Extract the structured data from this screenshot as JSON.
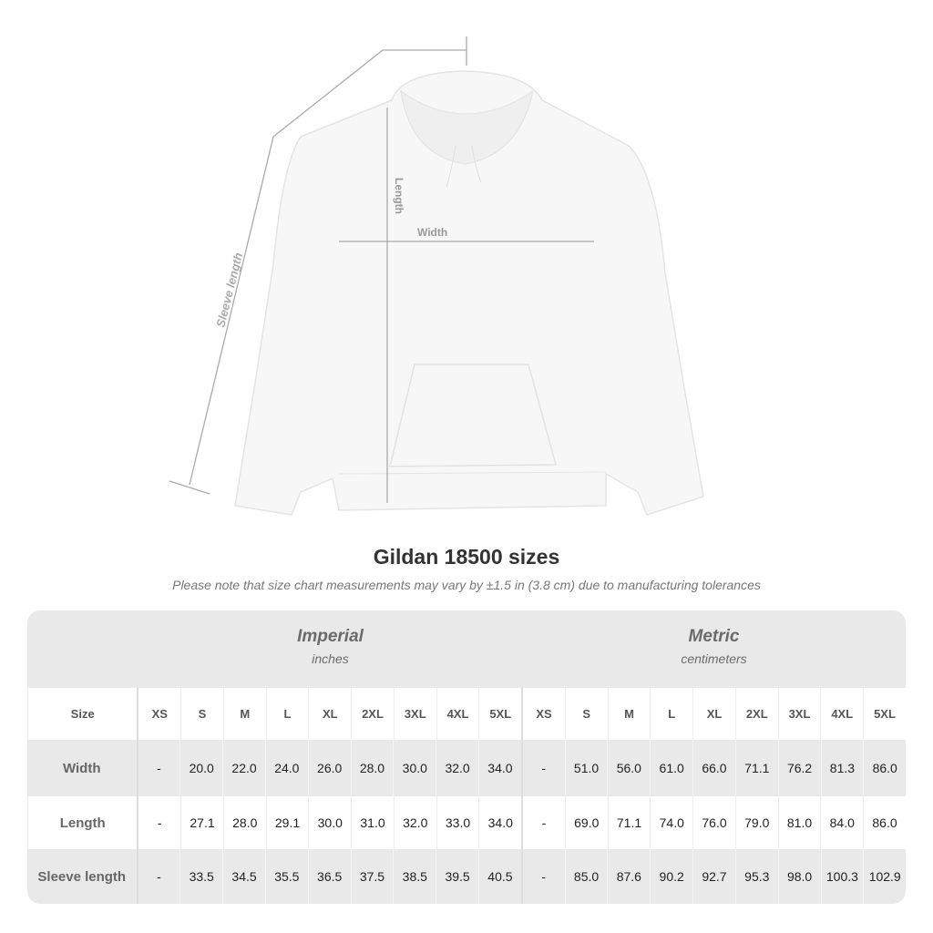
{
  "diagram": {
    "sleeve_label": "Sleeve length",
    "length_label": "Length",
    "width_label": "Width"
  },
  "title": "Gildan 18500 sizes",
  "note": "Please note that size chart measurements may vary by ±1.5 in (3.8 cm) due to manufacturing tolerances",
  "imperial": {
    "name": "Imperial",
    "unit": "inches"
  },
  "metric": {
    "name": "Metric",
    "unit": "centimeters"
  },
  "colors": {
    "table_bg": "#e9e9e9",
    "line": "#aaaaaa",
    "text": "#333333"
  },
  "size_label": "Size",
  "sizes": [
    "XS",
    "S",
    "M",
    "L",
    "XL",
    "2XL",
    "3XL",
    "4XL",
    "5XL"
  ],
  "rows": [
    {
      "label": "Width",
      "imperial": [
        "-",
        "20.0",
        "22.0",
        "24.0",
        "26.0",
        "28.0",
        "30.0",
        "32.0",
        "34.0"
      ],
      "metric": [
        "-",
        "51.0",
        "56.0",
        "61.0",
        "66.0",
        "71.1",
        "76.2",
        "81.3",
        "86.0"
      ]
    },
    {
      "label": "Length",
      "imperial": [
        "-",
        "27.1",
        "28.0",
        "29.1",
        "30.0",
        "31.0",
        "32.0",
        "33.0",
        "34.0"
      ],
      "metric": [
        "-",
        "69.0",
        "71.1",
        "74.0",
        "76.0",
        "79.0",
        "81.0",
        "84.0",
        "86.0"
      ]
    },
    {
      "label": "Sleeve length",
      "imperial": [
        "-",
        "33.5",
        "34.5",
        "35.5",
        "36.5",
        "37.5",
        "38.5",
        "39.5",
        "40.5"
      ],
      "metric": [
        "-",
        "85.0",
        "87.6",
        "90.2",
        "92.7",
        "95.3",
        "98.0",
        "100.3",
        "102.9"
      ]
    }
  ]
}
